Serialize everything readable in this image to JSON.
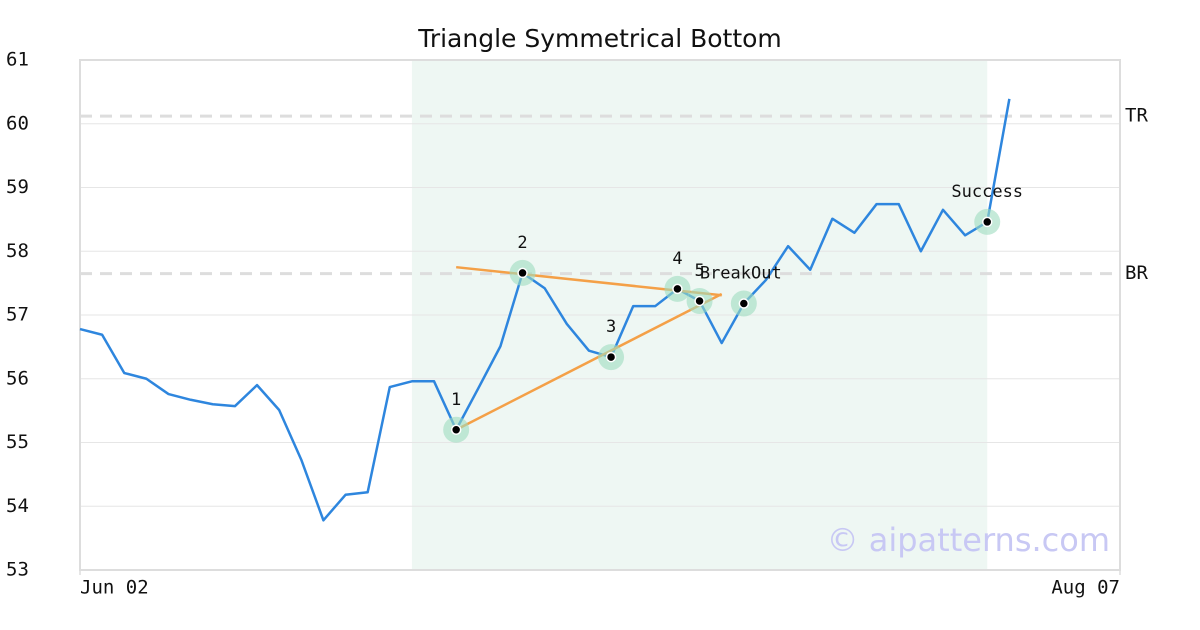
{
  "chart_data": {
    "type": "line",
    "title": "Triangle Symmetrical Bottom",
    "series": [
      {
        "color": "#2e86de",
        "values": [
          56.78,
          56.69,
          56.09,
          56.0,
          55.76,
          55.67,
          55.6,
          55.57,
          55.9,
          55.51,
          54.73,
          53.78,
          54.18,
          54.22,
          55.87,
          55.96,
          55.96,
          55.2,
          55.85,
          56.51,
          57.66,
          57.42,
          56.86,
          56.44,
          56.34,
          57.14,
          57.14,
          57.41,
          57.22,
          56.56,
          57.18,
          57.55,
          58.08,
          57.71,
          58.51,
          58.29,
          58.74,
          58.74,
          58.0,
          58.65,
          58.25,
          58.46,
          60.39
        ]
      }
    ],
    "xlim": [
      0,
      47
    ],
    "xticks": [
      {
        "value": 0,
        "label": "Jun 02"
      },
      {
        "value": 47,
        "label": "Aug 07"
      }
    ],
    "ylim": [
      53,
      61
    ],
    "yticks": [
      53,
      54,
      55,
      56,
      57,
      58,
      59,
      60,
      61
    ],
    "grid": true,
    "highlight": {
      "from": 15,
      "to": 41,
      "color": "#eef7f3"
    },
    "points": [
      {
        "label": "1",
        "x": 17,
        "value": 55.2
      },
      {
        "label": "2",
        "x": 20,
        "value": 57.66
      },
      {
        "label": "3",
        "x": 24,
        "value": 56.34
      },
      {
        "label": "4",
        "x": 27,
        "value": 57.41
      },
      {
        "label": "5",
        "x": 28,
        "value": 57.22
      },
      {
        "label": "BreakOut",
        "x": 30,
        "value": 57.18
      },
      {
        "label": "Success",
        "x": 41,
        "value": 58.46
      }
    ],
    "lines": [
      {
        "color": "#f4a047",
        "x": [
          17,
          29
        ],
        "values": [
          57.75,
          57.31
        ]
      },
      {
        "color": "#f4a047",
        "x": [
          17,
          29
        ],
        "values": [
          55.2,
          57.33
        ]
      }
    ],
    "levels": [
      {
        "label": "TR",
        "value": 60.12
      },
      {
        "label": "BR",
        "value": 57.65
      }
    ],
    "watermark": "© aipatterns.com"
  }
}
